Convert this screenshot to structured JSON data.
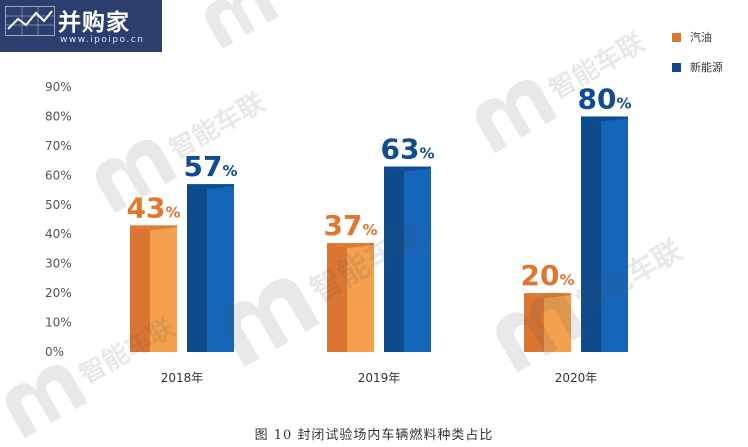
{
  "logo": {
    "name": "并购家",
    "url": "www.ipoipo.cn"
  },
  "watermark": {
    "text": "智能车联"
  },
  "caption": "图 10   封闭试验场内车辆燃料种类占比",
  "colors": {
    "gasoline": "#f4a04f",
    "gasoline_dark": "#db7532",
    "gasoline_label": "#e0762f",
    "new_energy": "#1565b8",
    "new_energy_dark": "#0d4b8c",
    "new_energy_label": "#0f4c91",
    "logo_bg": "#2c3e6e"
  },
  "chart_data": {
    "type": "bar",
    "title": "",
    "xlabel": "",
    "ylabel": "",
    "categories": [
      "2018年",
      "2019年",
      "2020年"
    ],
    "series": [
      {
        "name": "汽油",
        "values": [
          43,
          37,
          20
        ]
      },
      {
        "name": "新能源",
        "values": [
          57,
          63,
          80
        ]
      }
    ],
    "value_suffix": "%",
    "ylim": [
      0,
      90
    ],
    "yticks": [
      "0%",
      "10%",
      "20%",
      "30%",
      "40%",
      "50%",
      "60%",
      "70%",
      "80%",
      "90%"
    ],
    "grid": false,
    "legend": "top-right"
  }
}
